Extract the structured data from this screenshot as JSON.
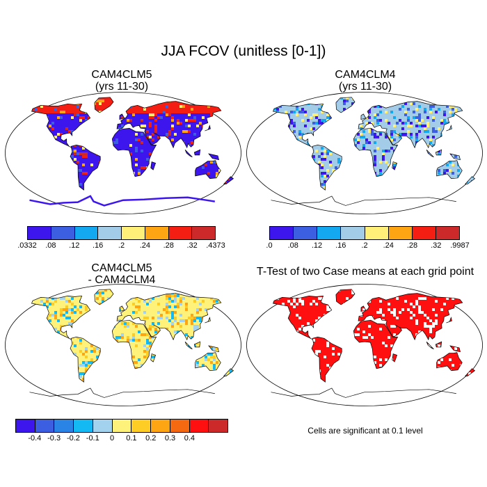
{
  "title": "JJA FCOV (unitless [0-1])",
  "panels": [
    {
      "id": "p1",
      "title_line1": "CAM4CLM5",
      "title_line2": "(yrs 11-30)"
    },
    {
      "id": "p2",
      "title_line1": "CAM4CLM4",
      "title_line2": "(yrs 11-30)"
    },
    {
      "id": "p3",
      "title_line1": "CAM4CLM5",
      "title_line2": "- CAM4CLM4"
    },
    {
      "id": "p4",
      "title_line1": "T-Test of two Case means at each grid point",
      "title_line2": ""
    }
  ],
  "colorbars": {
    "cb1": {
      "colors": [
        "#3d16ee",
        "#3b5fe0",
        "#14a8f0",
        "#a2cce8",
        "#fff07a",
        "#fda513",
        "#f41e12",
        "#cc2a2a"
      ],
      "labels": [
        ".0332",
        ".08",
        ".12",
        ".16",
        ".2",
        ".24",
        ".28",
        ".32",
        ".4373"
      ]
    },
    "cb2": {
      "colors": [
        "#3d16ee",
        "#3b5fe0",
        "#14a8f0",
        "#a2cce8",
        "#fff07a",
        "#fda513",
        "#f41e12",
        "#cc2a2a"
      ],
      "labels": [
        ".0",
        ".08",
        ".12",
        ".16",
        ".2",
        ".24",
        ".28",
        ".32",
        ".9987"
      ]
    },
    "cb3": {
      "colors": [
        "#3d16ee",
        "#3b5fe0",
        "#2a84e6",
        "#14b8f2",
        "#a2d2ee",
        "#fff27a",
        "#fdcd26",
        "#fda513",
        "#f56a10",
        "#ff1010",
        "#cc2a2a"
      ],
      "labels": [
        "-0.4",
        "-0.3",
        "-0.2",
        "-0.1",
        "0",
        "0.1",
        "0.2",
        "0.3",
        "0.4"
      ]
    }
  },
  "significance_note": "Cells are significant at 0.1 level"
}
